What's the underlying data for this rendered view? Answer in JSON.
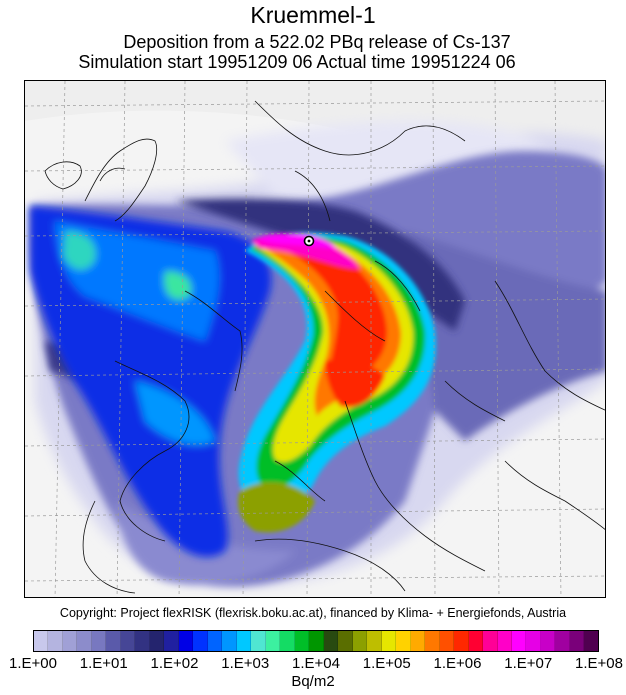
{
  "header": {
    "title": "Kruemmel-1",
    "subtitle_line1": "Deposition from a  522.02 PBq release of Cs-137",
    "subtitle_line2": "Simulation start 19951209 06   Actual time  19951224 06"
  },
  "map": {
    "release_site_marker": "release-point",
    "grid": true
  },
  "footer": {
    "copyright": "Copyright: Project flexRISK (flexrisk.boku.ac.at), financed by Klima- + Energiefonds, Austria"
  },
  "colorbar": {
    "unit": "Bq/m2",
    "scale": "log",
    "tick_labels": [
      "1.E+00",
      "1.E+01",
      "1.E+02",
      "1.E+03",
      "1.E+04",
      "1.E+05",
      "1.E+06",
      "1.E+07",
      "1.E+08"
    ],
    "colors": [
      "#c8c8ec",
      "#b4b4e0",
      "#a0a0d6",
      "#8c8ccb",
      "#7878c0",
      "#5a5aaa",
      "#464696",
      "#323282",
      "#24246e",
      "#2020a0",
      "#0000e6",
      "#0032ff",
      "#0064ff",
      "#0096ff",
      "#00c8ff",
      "#50e6d2",
      "#3cf0a0",
      "#14dc64",
      "#00be28",
      "#009600",
      "#284a10",
      "#5a6e00",
      "#8ca000",
      "#bebe00",
      "#e6e600",
      "#ffd200",
      "#ffaa00",
      "#ff7800",
      "#ff5000",
      "#ff2800",
      "#ff0032",
      "#ff0096",
      "#ff00c8",
      "#ff00ff",
      "#e600e6",
      "#c800c8",
      "#a000a0",
      "#7a007a",
      "#500050"
    ]
  }
}
